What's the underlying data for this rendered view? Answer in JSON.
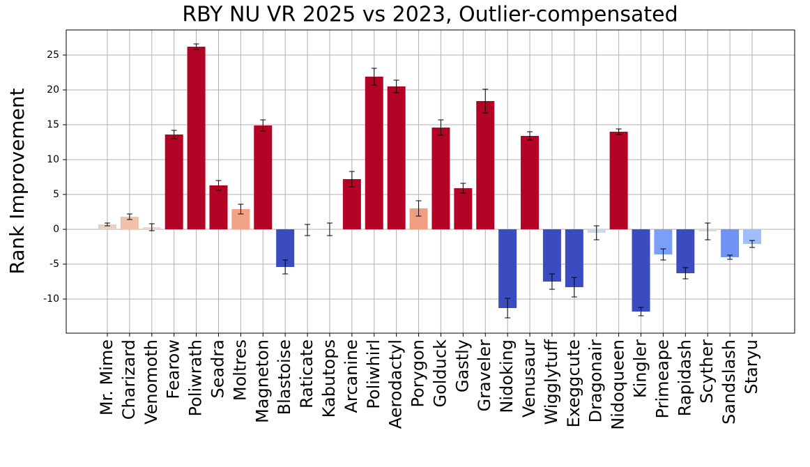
{
  "chart_data": {
    "type": "bar",
    "title": "RBY NU VR 2025 vs 2023, Outlier-compensated",
    "y_label": "Rank Improvement",
    "categories": [
      "Mr. Mime",
      "Charizard",
      "Venomoth",
      "Fearow",
      "Poliwrath",
      "Seadra",
      "Moltres",
      "Magneton",
      "Blastoise",
      "Raticate",
      "Kabutops",
      "Arcanine",
      "Poliwhirl",
      "Aerodactyl",
      "Porygon",
      "Golduck",
      "Gastly",
      "Graveler",
      "Nidoking",
      "Venusaur",
      "Wigglytuff",
      "Exeggcute",
      "Dragonair",
      "Nidoqueen",
      "Kingler",
      "Primeape",
      "Rapidash",
      "Scyther",
      "Sandslash",
      "Staryu"
    ],
    "values": [
      0.7,
      1.8,
      0.3,
      13.6,
      26.2,
      6.3,
      2.9,
      14.9,
      -5.4,
      -0.1,
      0.0,
      7.2,
      21.9,
      20.5,
      3.0,
      14.6,
      5.9,
      18.4,
      -11.3,
      13.4,
      -7.5,
      -8.3,
      -0.5,
      14.0,
      -11.8,
      -3.6,
      -6.3,
      -0.3,
      -4.0,
      -2.1
    ],
    "errors": [
      0.2,
      0.4,
      0.5,
      0.6,
      0.4,
      0.7,
      0.7,
      0.8,
      1.0,
      0.8,
      0.9,
      1.1,
      1.2,
      0.9,
      1.1,
      1.1,
      0.7,
      1.7,
      1.4,
      0.6,
      1.1,
      1.4,
      1.0,
      0.4,
      0.6,
      0.8,
      0.8,
      1.2,
      0.3,
      0.5
    ],
    "colors": [
      "#e8d2c7",
      "#f2c1a9",
      "#e6d7cf",
      "#b40426",
      "#b40426",
      "#b40426",
      "#f2a385",
      "#b40426",
      "#3b4cc0",
      "#dcdddd",
      "#dddcdc",
      "#b40426",
      "#b40426",
      "#b40426",
      "#f09e7f",
      "#b40426",
      "#b40426",
      "#b40426",
      "#3b4cc0",
      "#b40426",
      "#3b4cc0",
      "#3b4cc0",
      "#cbd8ee",
      "#b40426",
      "#3b4cc0",
      "#7b9ff9",
      "#3b4cc0",
      "#d6dce4",
      "#6f92f3",
      "#9ebeff"
    ],
    "ylim": [
      -14.9,
      28.6
    ],
    "yticks": [
      -10,
      -5,
      0,
      5,
      10,
      15,
      20,
      25
    ],
    "grid": true
  }
}
